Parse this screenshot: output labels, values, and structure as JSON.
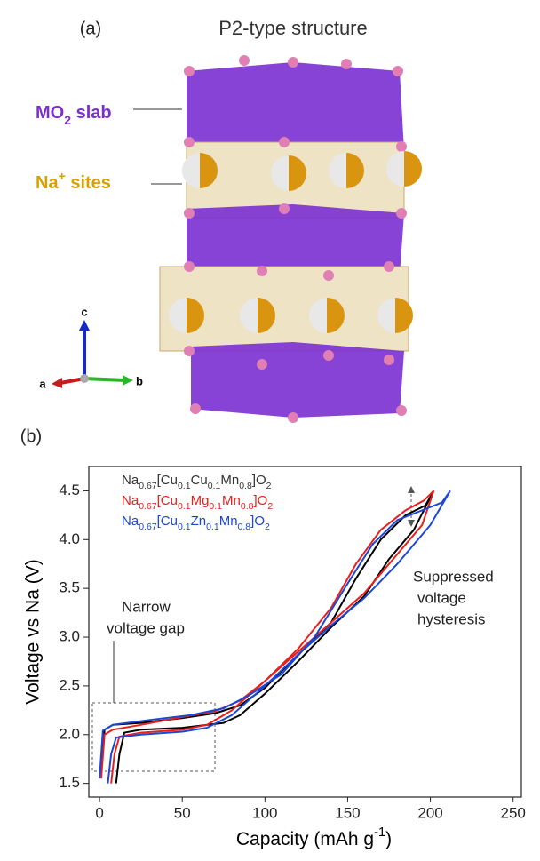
{
  "panel_a": {
    "label": "(a)",
    "title": "P2-type structure",
    "slab_label": "MO2 slab",
    "site_label": "Na+ sites",
    "axes": [
      "c",
      "a",
      "b"
    ]
  },
  "chart_data": {
    "type": "line",
    "panel_label": "(b)",
    "x_label": "Capacity (mAh g-1)",
    "y_label": "Voltage vs Na (V)",
    "xlim": [
      -6.5,
      255
    ],
    "ylim": [
      1.36,
      4.75
    ],
    "xticks": [
      0,
      50,
      100,
      150,
      200,
      250
    ],
    "yticks": [
      1.5,
      {
        "value": 2,
        "label": "2.0"
      },
      2.5,
      {
        "value": 3,
        "label": "3.0"
      },
      3.5,
      {
        "value": 4,
        "label": "4.0"
      },
      4.5
    ],
    "annotations": [
      [
        "Narrow",
        "voltage gap"
      ],
      [
        "Suppressed",
        "voltage",
        "hysteresis"
      ]
    ],
    "series": [
      {
        "name": "Na0.67[Cu0.1Cu0.1Mn0.8]O2",
        "color": "#000000",
        "x": [
          10,
          12,
          15,
          25,
          50,
          75,
          85,
          100,
          120,
          140,
          160,
          175,
          190,
          202,
          197,
          185,
          170,
          155,
          140,
          120,
          100,
          85,
          70,
          50,
          25,
          8,
          3,
          1
        ],
        "values": [
          1.5,
          1.8,
          2.02,
          2.05,
          2.07,
          2.12,
          2.2,
          2.42,
          2.75,
          3.1,
          3.42,
          3.8,
          4.1,
          4.5,
          4.35,
          4.25,
          4.0,
          3.6,
          3.15,
          2.82,
          2.48,
          2.3,
          2.22,
          2.17,
          2.12,
          2.1,
          2.05,
          1.6
        ]
      },
      {
        "name": "Na0.67[Cu0.1Mg0.1Mn0.8]O2",
        "color": "#e8201c",
        "x": [
          7,
          9,
          12,
          25,
          50,
          65,
          80,
          100,
          120,
          140,
          160,
          180,
          195,
          202,
          196,
          185,
          170,
          155,
          140,
          120,
          100,
          85,
          70,
          50,
          25,
          8,
          3,
          1
        ],
        "values": [
          1.5,
          1.8,
          1.98,
          2.02,
          2.05,
          2.1,
          2.25,
          2.55,
          2.85,
          3.15,
          3.45,
          3.85,
          4.15,
          4.5,
          4.4,
          4.3,
          4.1,
          3.75,
          3.3,
          2.88,
          2.55,
          2.35,
          2.24,
          2.18,
          2.1,
          2.05,
          2.0,
          1.55
        ]
      },
      {
        "name": "Na0.67[Cu0.1Zn0.1Mn0.8]O2",
        "color": "#1a47d6",
        "x": [
          5,
          7,
          10,
          25,
          50,
          65,
          80,
          100,
          120,
          140,
          160,
          180,
          200,
          212,
          207,
          195,
          180,
          165,
          150,
          130,
          110,
          90,
          75,
          55,
          30,
          8,
          2,
          0
        ],
        "values": [
          1.5,
          1.8,
          1.97,
          2.0,
          2.03,
          2.07,
          2.2,
          2.5,
          2.82,
          3.12,
          3.4,
          3.75,
          4.15,
          4.5,
          4.38,
          4.3,
          4.2,
          3.95,
          3.55,
          3.0,
          2.62,
          2.4,
          2.27,
          2.2,
          2.15,
          2.1,
          2.04,
          1.55
        ]
      }
    ]
  }
}
